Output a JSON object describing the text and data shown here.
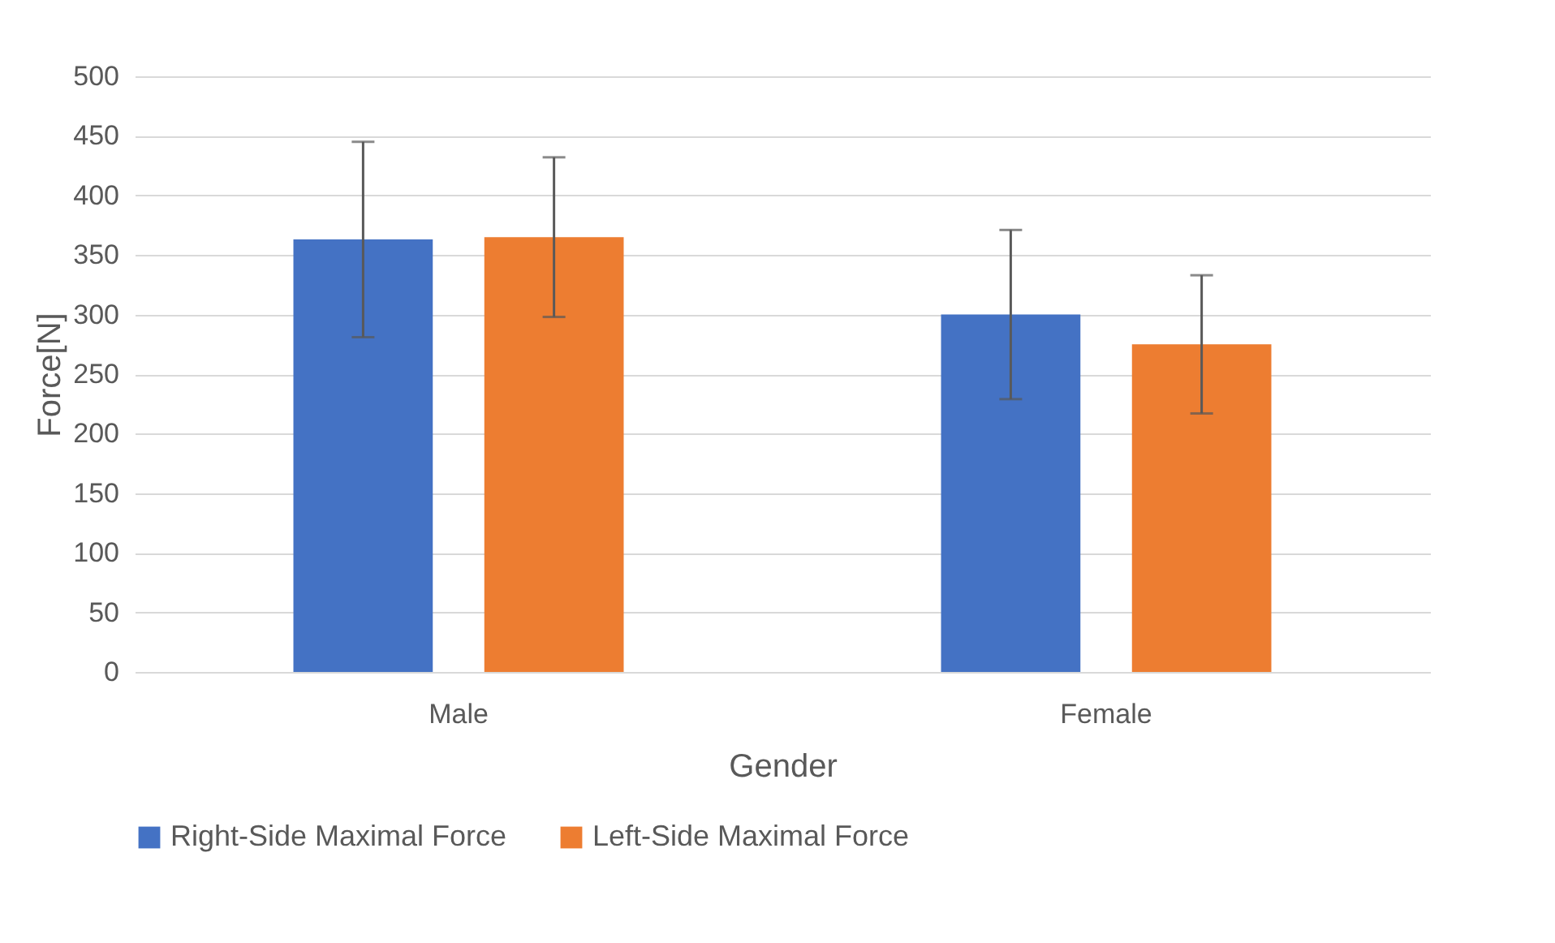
{
  "chart_data": {
    "type": "bar",
    "xlabel": "Gender",
    "ylabel": "Force[N]",
    "categories": [
      "Male",
      "Female"
    ],
    "series": [
      {
        "name": "Right-Side Maximal Force",
        "color": "#4472c4",
        "values": [
          363,
          300
        ],
        "errors": [
          82,
          71
        ]
      },
      {
        "name": "Left-Side Maximal Force",
        "color": "#ed7d31",
        "values": [
          365,
          275
        ],
        "errors": [
          67,
          58
        ]
      }
    ],
    "ylim": [
      0,
      500
    ],
    "yticks": [
      0,
      50,
      100,
      150,
      200,
      250,
      300,
      350,
      400,
      450,
      500
    ],
    "grid": "y",
    "legend": "bottom"
  }
}
